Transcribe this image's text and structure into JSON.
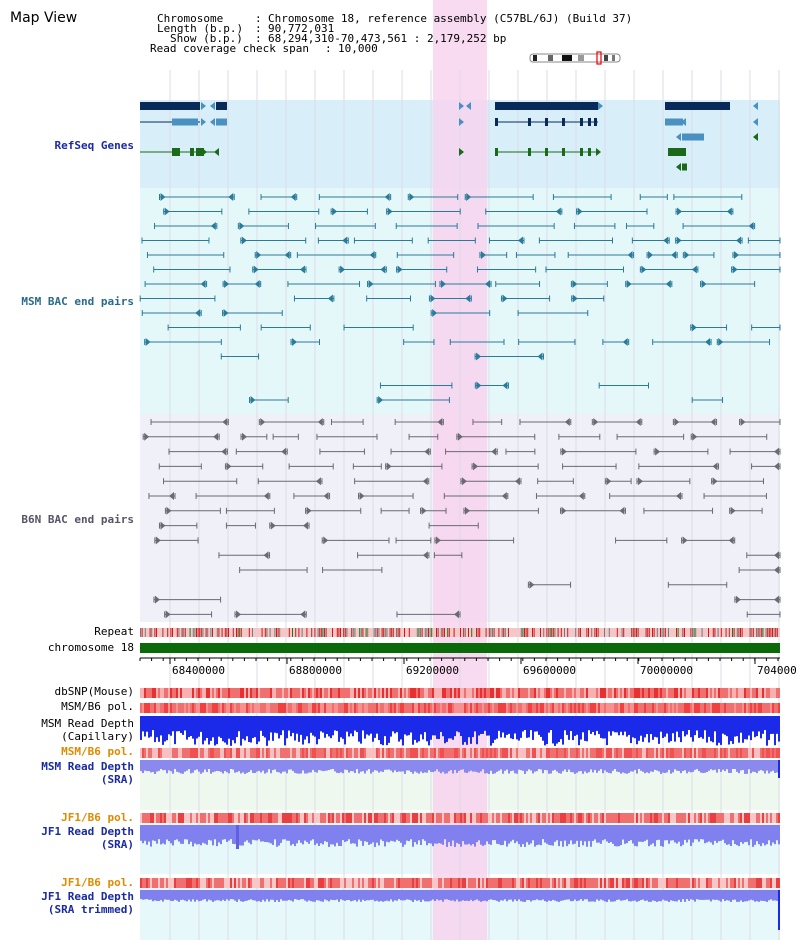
{
  "header": {
    "title": "Map View",
    "chromosome_label": "Chromosome",
    "chromosome_value": "Chromosome 18, reference assembly (C57BL/6J) (Build 37)",
    "length_label": "Length (b.p.)",
    "length_value": "90,772,031",
    "show_label": "Show (b.p.)",
    "show_value": "68,294,310-70,473,561 : 2,179,252 bp",
    "coverage_label": "Read coverage check span",
    "coverage_value": "10,000"
  },
  "tracks": {
    "refseq": "RefSeq Genes",
    "msm_bac": "MSM BAC end pairs",
    "b6n_bac": "B6N BAC end pairs",
    "repeat": "Repeat",
    "chromosome": "chromosome 18",
    "dbsnp": "dbSNP(Mouse)",
    "msm_b6_pol_1": "MSM/B6 pol.",
    "msm_depth_cap_1": "MSM Read Depth",
    "msm_depth_cap_2": "(Capillary)",
    "msm_b6_pol_2": "MSM/B6 pol.",
    "msm_depth_sra_1": "MSM Read Depth",
    "msm_depth_sra_2": "(SRA)",
    "jf1_b6_pol_1": "JF1/B6 pol.",
    "jf1_depth_sra_1": "JF1 Read Depth",
    "jf1_depth_sra_2": "(SRA)",
    "jf1_b6_pol_2": "JF1/B6 pol.",
    "jf1_depth_trim_1": "JF1 Read Depth",
    "jf1_depth_trim_2": "(SRA trimmed)"
  },
  "axis": {
    "ticks": [
      "68400000",
      "68800000",
      "69200000",
      "69600000",
      "70000000",
      "704000"
    ]
  },
  "colors": {
    "highlight": "#f7d3ee",
    "refseq_bg": "#d8eef8",
    "msm_bg": "#e4f8fa",
    "b6n_bg": "#f0f0f8",
    "gene_dark": "#0a2a5a",
    "gene_mid": "#4a90c0",
    "gene_green": "#1a6a1a",
    "chromosome_bar": "#0a6a0a"
  }
}
